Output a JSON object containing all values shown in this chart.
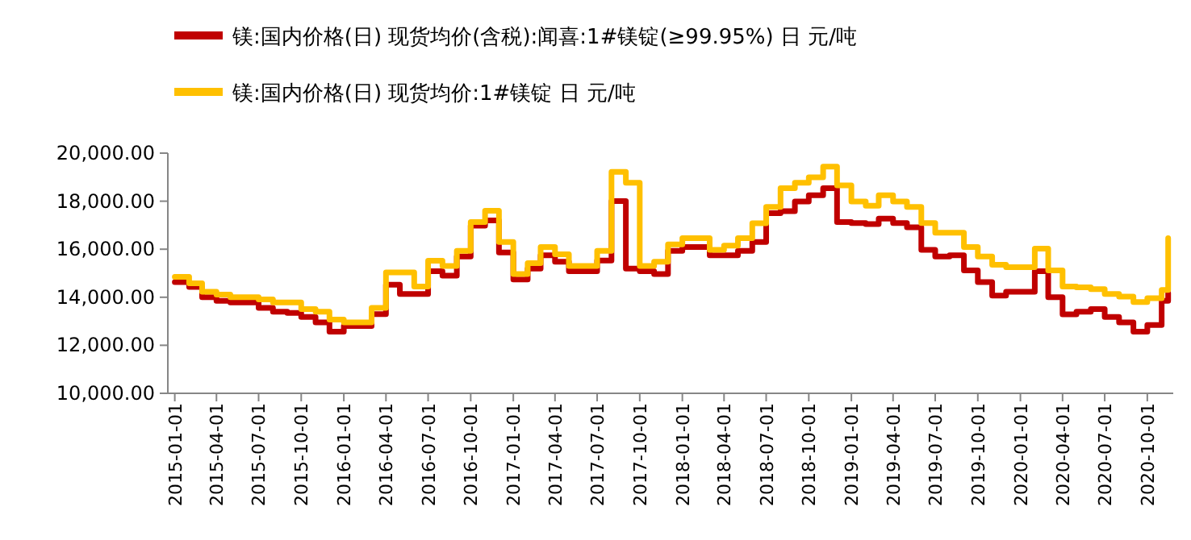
{
  "chart_data": {
    "type": "step",
    "legend": "top left",
    "grid": false,
    "line_style": "solid",
    "x": [
      "2015-01-01",
      "2015-02-01",
      "2015-03-01",
      "2015-04-01",
      "2015-05-01",
      "2015-06-01",
      "2015-07-01",
      "2015-08-01",
      "2015-09-01",
      "2015-10-01",
      "2015-11-01",
      "2015-12-01",
      "2016-01-01",
      "2016-02-01",
      "2016-03-01",
      "2016-04-01",
      "2016-05-01",
      "2016-06-01",
      "2016-07-01",
      "2016-08-01",
      "2016-09-01",
      "2016-10-01",
      "2016-11-01",
      "2016-12-01",
      "2017-01-01",
      "2017-02-01",
      "2017-03-01",
      "2017-04-01",
      "2017-05-01",
      "2017-06-01",
      "2017-07-01",
      "2017-08-01",
      "2017-09-01",
      "2017-10-01",
      "2017-11-01",
      "2017-12-01",
      "2018-01-01",
      "2018-02-01",
      "2018-03-01",
      "2018-04-01",
      "2018-05-01",
      "2018-06-01",
      "2018-07-01",
      "2018-08-01",
      "2018-09-01",
      "2018-10-01",
      "2018-11-01",
      "2018-12-01",
      "2019-01-01",
      "2019-02-01",
      "2019-03-01",
      "2019-04-01",
      "2019-05-01",
      "2019-06-01",
      "2019-07-01",
      "2019-08-01",
      "2019-09-01",
      "2019-10-01",
      "2019-11-01",
      "2019-12-01",
      "2020-01-01",
      "2020-02-01",
      "2020-03-01",
      "2020-04-01",
      "2020-05-01",
      "2020-06-01",
      "2020-07-01",
      "2020-08-01",
      "2020-09-01",
      "2020-10-01",
      "2020-11-01",
      "2020-11-15"
    ],
    "series": [
      {
        "name": "镁:国内价格(日) 现货均价(含税):闻喜:1#镁锭(≥99.95%) 日 元/吨",
        "color": "#c00000",
        "values": [
          14630,
          14430,
          14000,
          13850,
          13780,
          13780,
          13560,
          13400,
          13350,
          13180,
          12950,
          12570,
          12800,
          12800,
          13300,
          14520,
          14140,
          14140,
          15080,
          14900,
          15700,
          16980,
          17200,
          15860,
          14740,
          15190,
          15750,
          15480,
          15080,
          15080,
          15530,
          18000,
          15190,
          15080,
          14970,
          15930,
          16090,
          16090,
          15750,
          15750,
          15930,
          16300,
          17500,
          17580,
          17990,
          18250,
          18540,
          17130,
          17090,
          17050,
          17270,
          17090,
          16910,
          15970,
          15700,
          15750,
          15120,
          14630,
          14070,
          14230,
          14230,
          15080,
          14000,
          13290,
          13400,
          13510,
          13180,
          12950,
          12570,
          12840,
          13850,
          14180
        ]
      },
      {
        "name": "镁:国内价格(日) 现货均价:1#镁锭 日 元/吨",
        "color": "#ffc000",
        "values": [
          14850,
          14580,
          14230,
          14110,
          14000,
          14000,
          13910,
          13780,
          13780,
          13510,
          13400,
          13070,
          12950,
          12950,
          13560,
          15030,
          15030,
          14450,
          15520,
          15300,
          15930,
          17130,
          17600,
          16300,
          14970,
          15420,
          16090,
          15790,
          15300,
          15300,
          15930,
          19220,
          18770,
          15300,
          15480,
          16200,
          16460,
          16460,
          15970,
          16150,
          16460,
          17080,
          17760,
          18540,
          18770,
          18990,
          19440,
          18660,
          17990,
          17810,
          18250,
          17990,
          17760,
          17090,
          16690,
          16690,
          16090,
          15700,
          15350,
          15250,
          15250,
          16020,
          15120,
          14450,
          14410,
          14340,
          14140,
          14030,
          13800,
          13960,
          14300,
          16460
        ]
      }
    ],
    "ylim": [
      10000,
      20000
    ],
    "yticks": [
      {
        "value": 10000,
        "label": "10,000.00"
      },
      {
        "value": 12000,
        "label": "12,000.00"
      },
      {
        "value": 14000,
        "label": "14,000.00"
      },
      {
        "value": 16000,
        "label": "16,000.00"
      },
      {
        "value": 18000,
        "label": "18,000.00"
      },
      {
        "value": 20000,
        "label": "20,000.00"
      }
    ],
    "xlim": [
      "2014-12-17",
      "2020-11-26"
    ],
    "xticks": [
      {
        "value": "2015-01-01",
        "label": "2015-01-01"
      },
      {
        "value": "2015-04-01",
        "label": "2015-04-01"
      },
      {
        "value": "2015-07-01",
        "label": "2015-07-01"
      },
      {
        "value": "2015-10-01",
        "label": "2015-10-01"
      },
      {
        "value": "2016-01-01",
        "label": "2016-01-01"
      },
      {
        "value": "2016-04-01",
        "label": "2016-04-01"
      },
      {
        "value": "2016-07-01",
        "label": "2016-07-01"
      },
      {
        "value": "2016-10-01",
        "label": "2016-10-01"
      },
      {
        "value": "2017-01-01",
        "label": "2017-01-01"
      },
      {
        "value": "2017-04-01",
        "label": "2017-04-01"
      },
      {
        "value": "2017-07-01",
        "label": "2017-07-01"
      },
      {
        "value": "2017-10-01",
        "label": "2017-10-01"
      },
      {
        "value": "2018-01-01",
        "label": "2018-01-01"
      },
      {
        "value": "2018-04-01",
        "label": "2018-04-01"
      },
      {
        "value": "2018-07-01",
        "label": "2018-07-01"
      },
      {
        "value": "2018-10-01",
        "label": "2018-10-01"
      },
      {
        "value": "2019-01-01",
        "label": "2019-01-01"
      },
      {
        "value": "2019-04-01",
        "label": "2019-04-01"
      },
      {
        "value": "2019-07-01",
        "label": "2019-07-01"
      },
      {
        "value": "2019-10-01",
        "label": "2019-10-01"
      },
      {
        "value": "2020-01-01",
        "label": "2020-01-01"
      },
      {
        "value": "2020-04-01",
        "label": "2020-04-01"
      },
      {
        "value": "2020-07-01",
        "label": "2020-07-01"
      },
      {
        "value": "2020-10-01",
        "label": "2020-10-01"
      }
    ]
  }
}
